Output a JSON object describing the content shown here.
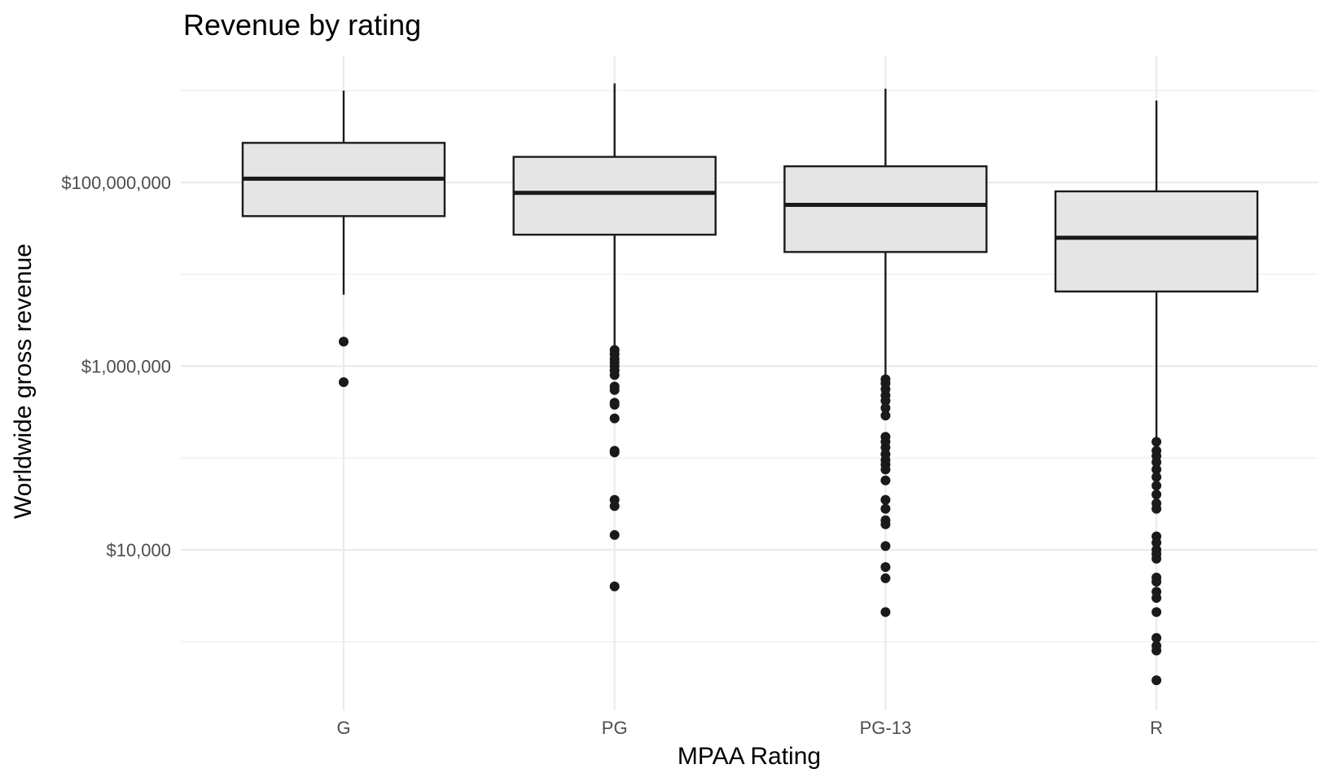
{
  "chart_data": {
    "type": "boxplot",
    "title": "Revenue by rating",
    "xlabel": "MPAA Rating",
    "ylabel": "Worldwide gross revenue",
    "y_scale": "log10",
    "ylim": [
      300,
      2000000000
    ],
    "y_ticks": [
      {
        "value": 10000,
        "label": "$10,000"
      },
      {
        "value": 1000000,
        "label": "$1,000,000"
      },
      {
        "value": 100000000,
        "label": "$100,000,000"
      }
    ],
    "grid": true,
    "categories": [
      "G",
      "PG",
      "PG-13",
      "R"
    ],
    "boxes": [
      {
        "category": "G",
        "lower_whisker": 6000000,
        "q1": 43000000,
        "median": 110000000,
        "q3": 270000000,
        "upper_whisker": 1000000000,
        "outliers": [
          1850000,
          670000
        ]
      },
      {
        "category": "PG",
        "lower_whisker": 1500000,
        "q1": 27000000,
        "median": 77000000,
        "q3": 190000000,
        "upper_whisker": 1200000000,
        "outliers": [
          1500000,
          1350000,
          1200000,
          1100000,
          1000000,
          900000,
          800000,
          600000,
          550000,
          400000,
          380000,
          270000,
          120000,
          115000,
          35000,
          30000,
          14500,
          4000
        ]
      },
      {
        "category": "PG-13",
        "lower_whisker": 750000,
        "q1": 17500000,
        "median": 57000000,
        "q3": 150000000,
        "upper_whisker": 1050000000,
        "outliers": [
          720000,
          650000,
          560000,
          480000,
          420000,
          350000,
          290000,
          170000,
          150000,
          130000,
          110000,
          95000,
          85000,
          75000,
          57000,
          35000,
          28000,
          21000,
          19000,
          11000,
          6500,
          4900,
          2100
        ]
      },
      {
        "category": "R",
        "lower_whisker": 150000,
        "q1": 6500000,
        "median": 25000000,
        "q3": 80000000,
        "upper_whisker": 780000000,
        "outliers": [
          150000,
          120000,
          105000,
          90000,
          75000,
          62000,
          50000,
          40000,
          32000,
          28000,
          14000,
          12000,
          10000,
          9000,
          8000,
          5000,
          4500,
          3500,
          3000,
          2100,
          1100,
          900,
          800,
          380
        ]
      }
    ]
  }
}
